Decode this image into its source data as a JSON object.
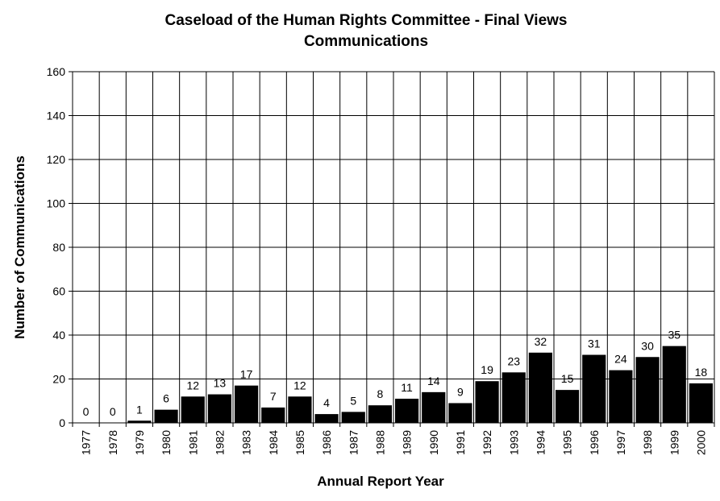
{
  "chart_data": {
    "type": "bar",
    "title": "Caseload of the Human Rights Committee - Final Views",
    "subtitle": "Communications",
    "xlabel": "Annual Report Year",
    "ylabel": "Number of Communications",
    "ylim": [
      0,
      160
    ],
    "yticks": [
      0,
      20,
      40,
      60,
      80,
      100,
      120,
      140,
      160
    ],
    "grid": true,
    "legend": "none",
    "bar_color": "#000000",
    "categories": [
      "1977",
      "1978",
      "1979",
      "1980",
      "1981",
      "1982",
      "1983",
      "1984",
      "1985",
      "1986",
      "1987",
      "1988",
      "1989",
      "1990",
      "1991",
      "1992",
      "1993",
      "1994",
      "1995",
      "1996",
      "1997",
      "1998",
      "1999",
      "2000"
    ],
    "values": [
      0,
      0,
      1,
      6,
      12,
      13,
      17,
      7,
      12,
      4,
      5,
      8,
      11,
      14,
      9,
      19,
      23,
      32,
      15,
      31,
      24,
      30,
      35,
      18
    ]
  }
}
